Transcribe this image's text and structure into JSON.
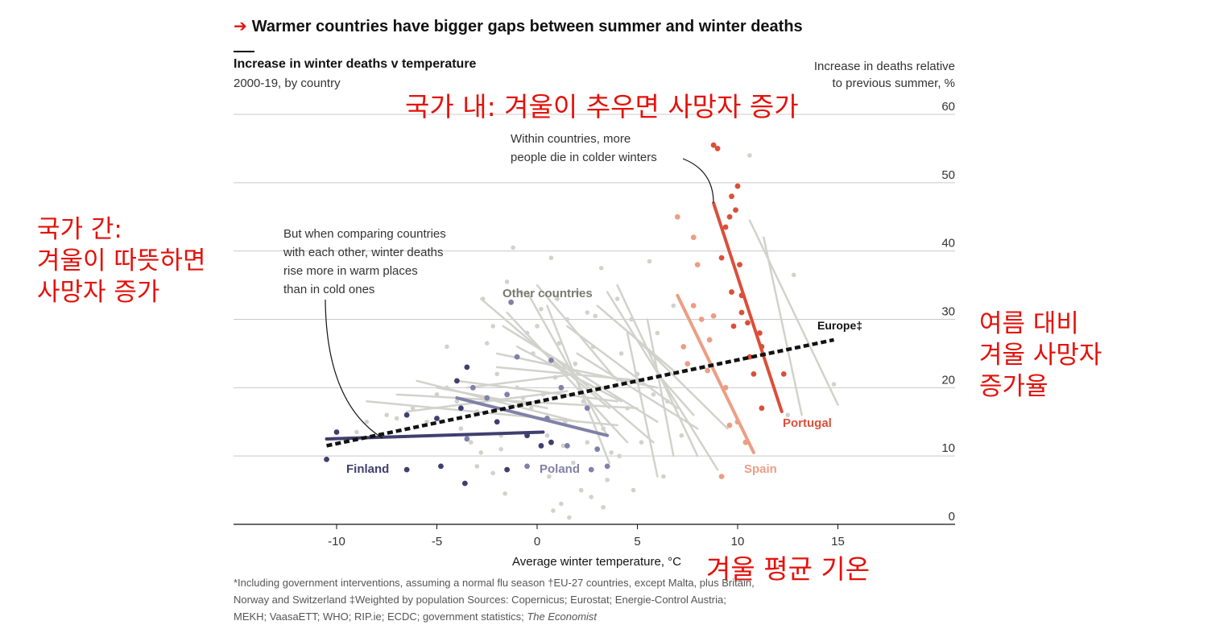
{
  "headline": {
    "arrow": "➔",
    "text": "Warmer countries have bigger gaps between summer and winter deaths"
  },
  "chart_title": "Increase in winter deaths v temperature",
  "chart_subtitle": "2000-19, by country",
  "ylabel_line1": "Increase in deaths relative",
  "ylabel_line2": "to previous summer, %",
  "korean_annotations": {
    "top": "국가 내: 겨울이 추우면 사망자 증가",
    "left": [
      "국가 간:",
      "겨울이 따뜻하면",
      "사망자 증가"
    ],
    "right": [
      "여름 대비",
      "겨울 사망자",
      "증가율"
    ],
    "bottom": "겨울 평균 기온"
  },
  "annotations": {
    "within": [
      "Within countries, more",
      "people die in colder winters"
    ],
    "between": [
      "But when comparing countries",
      "with each other, winter deaths",
      "rise more in warm places",
      "than in cold ones"
    ]
  },
  "footnote": {
    "line1": "*Including government interventions, assuming a normal flu season    †EU-27 countries, except Malta, plus Britain,",
    "line2": "Norway and Switzerland   ‡Weighted by population    Sources: Copernicus; Eurostat; Energie-Control Austria;",
    "line3_plain": "MEKH; VaasaETT; WHO; RIP.ie; ECDC; government statistics; ",
    "line3_italic": "The Economist"
  },
  "colors": {
    "finland": "#3f3f6f",
    "poland": "#8081a8",
    "portugal": "#db4f3a",
    "spain": "#ec9e85",
    "other": "#d2d2cc",
    "europe": "#121212",
    "korean": "#e3120b",
    "grid": "#c9c9c9"
  },
  "chart_data": {
    "type": "scatter",
    "xlabel": "Average winter temperature, °C",
    "ylabel": "Increase in deaths relative to previous summer, %",
    "xlim": [
      -15,
      21
    ],
    "ylim": [
      0,
      60
    ],
    "xticks": [
      -10,
      -5,
      0,
      5,
      10,
      15
    ],
    "yticks": [
      0,
      10,
      20,
      30,
      40,
      50,
      60
    ],
    "grid": "horizontal",
    "series": [
      {
        "name": "Finland",
        "points": [
          [
            -10.5,
            9.5
          ],
          [
            -10,
            13.5
          ],
          [
            -6.5,
            8
          ],
          [
            -6.5,
            16
          ],
          [
            -5,
            15.5
          ],
          [
            -4.8,
            8.5
          ],
          [
            -4,
            21
          ],
          [
            -3.8,
            17
          ],
          [
            -3.5,
            23
          ],
          [
            -3.6,
            6
          ],
          [
            -1.5,
            8
          ],
          [
            -2,
            15
          ],
          [
            -0.5,
            13
          ],
          [
            0.2,
            11.5
          ],
          [
            0.7,
            12
          ]
        ],
        "trend": [
          [
            -10.5,
            12.5
          ],
          [
            0.3,
            13.5
          ]
        ]
      },
      {
        "name": "Poland",
        "points": [
          [
            -3.5,
            12.5
          ],
          [
            -3.2,
            20
          ],
          [
            -2.5,
            18.5
          ],
          [
            -1.3,
            32.5
          ],
          [
            -1,
            24.5
          ],
          [
            -0.5,
            8.5
          ],
          [
            0.5,
            15.5
          ],
          [
            0.7,
            24
          ],
          [
            1.2,
            20
          ],
          [
            1.5,
            11.5
          ],
          [
            2.7,
            8
          ],
          [
            3,
            11
          ],
          [
            3.5,
            8.5
          ],
          [
            2.5,
            17
          ],
          [
            -1.5,
            19
          ]
        ],
        "trend": [
          [
            -4,
            18.5
          ],
          [
            3.5,
            13
          ]
        ]
      },
      {
        "name": "Spain",
        "points": [
          [
            7,
            45
          ],
          [
            7.3,
            26
          ],
          [
            7.5,
            23.5
          ],
          [
            7.8,
            42
          ],
          [
            8,
            38
          ],
          [
            8.2,
            30
          ],
          [
            8.5,
            22.5
          ],
          [
            8.8,
            30.5
          ],
          [
            8.6,
            27
          ],
          [
            9.4,
            20
          ],
          [
            9.6,
            14.5
          ],
          [
            10,
            15
          ],
          [
            10.4,
            12
          ],
          [
            9.2,
            7
          ],
          [
            7.8,
            32
          ]
        ],
        "trend": [
          [
            7,
            33.5
          ],
          [
            10.8,
            10.5
          ]
        ]
      },
      {
        "name": "Portugal",
        "points": [
          [
            8.8,
            55.5
          ],
          [
            9,
            55
          ],
          [
            9.6,
            45
          ],
          [
            9.9,
            46
          ],
          [
            10,
            49.5
          ],
          [
            9.7,
            48
          ],
          [
            9.2,
            39
          ],
          [
            10.1,
            38
          ],
          [
            9.7,
            34
          ],
          [
            10.2,
            33.5
          ],
          [
            9.8,
            29
          ],
          [
            10.5,
            29.5
          ],
          [
            11.1,
            28
          ],
          [
            11.2,
            26
          ],
          [
            10.8,
            22
          ],
          [
            11.2,
            17
          ],
          [
            12.3,
            22
          ],
          [
            10.2,
            31
          ],
          [
            9.4,
            43.5
          ],
          [
            10.6,
            24.5
          ]
        ],
        "trend": [
          [
            8.8,
            47
          ],
          [
            12.2,
            16.5
          ]
        ]
      },
      {
        "name": "Europe‡",
        "trend": [
          [
            -10.5,
            11.5
          ],
          [
            14.8,
            27
          ]
        ]
      }
    ],
    "other_countries_label": "Other countries",
    "other_points": [
      [
        -9,
        13.5
      ],
      [
        -8.5,
        15
      ],
      [
        -7.5,
        16
      ],
      [
        -7,
        15.5
      ],
      [
        -6.2,
        17
      ],
      [
        -5.5,
        15
      ],
      [
        -5,
        19
      ],
      [
        -4.5,
        20
      ],
      [
        -4.5,
        26
      ],
      [
        -4,
        18
      ],
      [
        -3.8,
        14
      ],
      [
        -3.3,
        12
      ],
      [
        -3,
        16.5
      ],
      [
        -2.8,
        10.5
      ],
      [
        -2.5,
        26.5
      ],
      [
        -2.2,
        29
      ],
      [
        -2,
        22
      ],
      [
        -1.8,
        13
      ],
      [
        -1.5,
        35.5
      ],
      [
        -1.2,
        40.5
      ],
      [
        -1,
        20
      ],
      [
        -0.8,
        34
      ],
      [
        -0.5,
        28
      ],
      [
        -0.3,
        17
      ],
      [
        0,
        29
      ],
      [
        0.2,
        31.5
      ],
      [
        0.5,
        13
      ],
      [
        0.7,
        39
      ],
      [
        0.6,
        7
      ],
      [
        0.9,
        21.5
      ],
      [
        1.2,
        3
      ],
      [
        1.4,
        15
      ],
      [
        1.5,
        30
      ],
      [
        1.6,
        1
      ],
      [
        1.8,
        9
      ],
      [
        1.9,
        23.5
      ],
      [
        2,
        34
      ],
      [
        2.2,
        5
      ],
      [
        2.3,
        18
      ],
      [
        2.5,
        31
      ],
      [
        2.5,
        12
      ],
      [
        2.7,
        4
      ],
      [
        2.8,
        26
      ],
      [
        3,
        20
      ],
      [
        3.2,
        37.5
      ],
      [
        3.3,
        14
      ],
      [
        3.5,
        6.5
      ],
      [
        3.7,
        10.5
      ],
      [
        4,
        33
      ],
      [
        4.2,
        25
      ],
      [
        4.5,
        17
      ],
      [
        4.7,
        30
      ],
      [
        5,
        22
      ],
      [
        5.2,
        12
      ],
      [
        5.6,
        38.5
      ],
      [
        5.8,
        19
      ],
      [
        6,
        28
      ],
      [
        6.5,
        18
      ],
      [
        6.8,
        32
      ],
      [
        6.3,
        7
      ],
      [
        7.2,
        13
      ],
      [
        1,
        33
      ],
      [
        -0.2,
        25
      ],
      [
        -2.7,
        33
      ],
      [
        -3,
        8.5
      ],
      [
        0.3,
        19
      ],
      [
        1.1,
        26.5
      ],
      [
        -1.8,
        11
      ],
      [
        2.9,
        30.5
      ],
      [
        4.8,
        5
      ],
      [
        10.6,
        54
      ],
      [
        12.8,
        36.5
      ],
      [
        14.8,
        20.5
      ],
      [
        12.5,
        16
      ],
      [
        3.3,
        2.5
      ],
      [
        -0.7,
        18.5
      ],
      [
        1.3,
        11.5
      ],
      [
        -2.2,
        7.5
      ],
      [
        -1.6,
        4.5
      ],
      [
        0.8,
        2
      ],
      [
        4.1,
        10
      ]
    ],
    "other_lines": [
      [
        [
          -2.8,
          33
        ],
        [
          3.6,
          17
        ]
      ],
      [
        [
          -1.5,
          31
        ],
        [
          4.5,
          12
        ]
      ],
      [
        [
          -1.7,
          29
        ],
        [
          6,
          15
        ]
      ],
      [
        [
          -7,
          19
        ],
        [
          5,
          17
        ]
      ],
      [
        [
          -8.5,
          18
        ],
        [
          4,
          14.5
        ]
      ],
      [
        [
          -6,
          21
        ],
        [
          2,
          15
        ]
      ],
      [
        [
          -4,
          21
        ],
        [
          4,
          18
        ]
      ],
      [
        [
          -2,
          25
        ],
        [
          6,
          20
        ]
      ],
      [
        [
          -0.5,
          34
        ],
        [
          3.5,
          13
        ]
      ],
      [
        [
          0,
          35
        ],
        [
          4,
          21
        ]
      ],
      [
        [
          1.5,
          29
        ],
        [
          7,
          17
        ]
      ],
      [
        [
          2,
          25
        ],
        [
          8,
          14
        ]
      ],
      [
        [
          3.5,
          34
        ],
        [
          9,
          8
        ]
      ],
      [
        [
          4.5,
          28
        ],
        [
          6,
          7
        ]
      ],
      [
        [
          4,
          35
        ],
        [
          8,
          10
        ]
      ],
      [
        [
          5,
          27
        ],
        [
          9.5,
          14
        ]
      ],
      [
        [
          6,
          22
        ],
        [
          7.8,
          16
        ]
      ],
      [
        [
          5.5,
          30
        ],
        [
          6.8,
          10
        ]
      ],
      [
        [
          -1,
          26
        ],
        [
          4.2,
          18
        ]
      ],
      [
        [
          -5,
          20
        ],
        [
          0.5,
          17
        ]
      ],
      [
        [
          0.5,
          32
        ],
        [
          3.6,
          9
        ]
      ],
      [
        [
          10.6,
          44.5
        ],
        [
          15,
          17.5
        ]
      ],
      [
        [
          11.3,
          42
        ],
        [
          13.2,
          16
        ]
      ],
      [
        [
          -2,
          23
        ],
        [
          5.3,
          21
        ]
      ],
      [
        [
          1,
          24
        ],
        [
          5.8,
          12
        ]
      ],
      [
        [
          3,
          32
        ],
        [
          7,
          22
        ]
      ],
      [
        [
          -3.5,
          20
        ],
        [
          2,
          22
        ]
      ],
      [
        [
          -6.5,
          16.5
        ],
        [
          1.5,
          19.5
        ]
      ]
    ]
  }
}
